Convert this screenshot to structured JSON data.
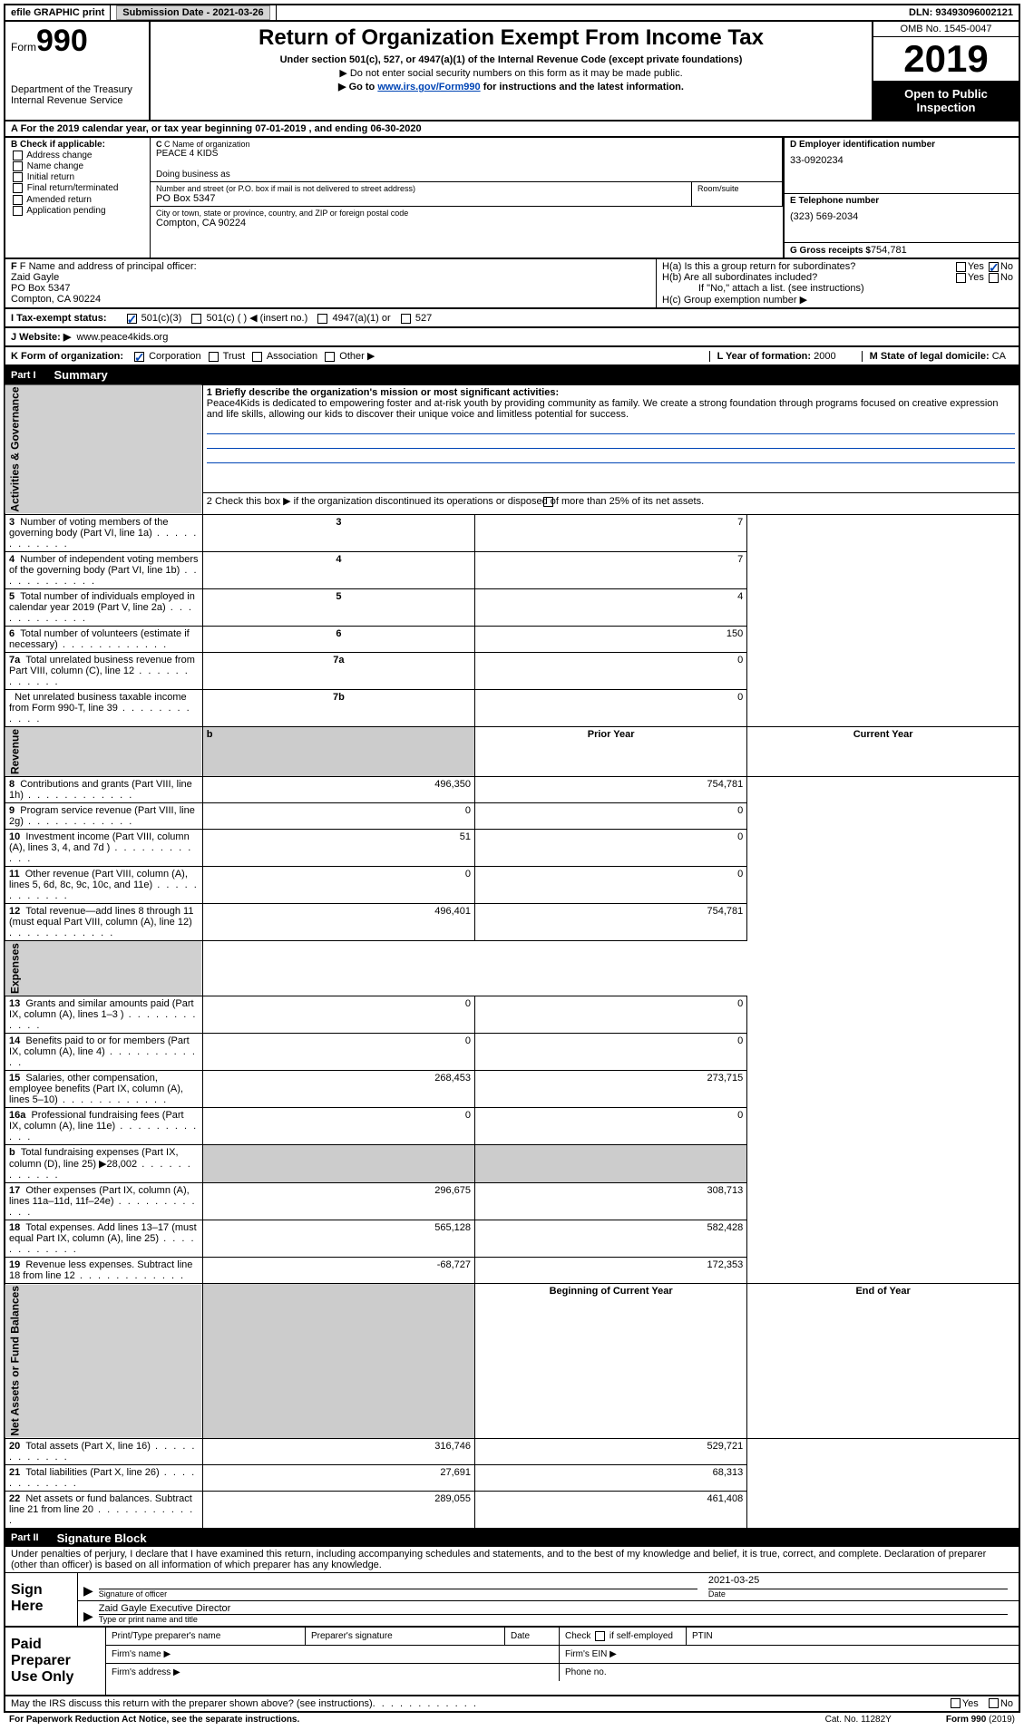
{
  "top": {
    "efile": "efile GRAPHIC print",
    "sub_label": "Submission Date - ",
    "sub_date": "2021-03-26",
    "dln_label": "DLN:",
    "dln": "93493096002121"
  },
  "header": {
    "form_prefix": "Form",
    "form_num": "990",
    "dept": "Department of the Treasury\nInternal Revenue Service",
    "title": "Return of Organization Exempt From Income Tax",
    "sub1": "Under section 501(c), 527, or 4947(a)(1) of the Internal Revenue Code (except private foundations)",
    "sub2": "▶ Do not enter social security numbers on this form as it may be made public.",
    "sub3_pre": "▶ Go to ",
    "sub3_link": "www.irs.gov/Form990",
    "sub3_post": " for instructions and the latest information.",
    "omb": "OMB No. 1545-0047",
    "year": "2019",
    "inspection": "Open to Public Inspection"
  },
  "rowA": "A For the 2019 calendar year, or tax year beginning 07-01-2019    , and ending 06-30-2020",
  "colB": {
    "label": "B Check if applicable:",
    "items": [
      "Address change",
      "Name change",
      "Initial return",
      "Final return/terminated",
      "Amended return",
      "Application pending"
    ]
  },
  "colC": {
    "name_label": "C Name of organization",
    "name": "PEACE 4 KIDS",
    "dba_label": "Doing business as",
    "addr_label": "Number and street (or P.O. box if mail is not delivered to street address)",
    "room_label": "Room/suite",
    "addr": "PO Box 5347",
    "city_label": "City or town, state or province, country, and ZIP or foreign postal code",
    "city": "Compton, CA  90224"
  },
  "colD": {
    "ein_label": "D Employer identification number",
    "ein": "33-0920234",
    "phone_label": "E Telephone number",
    "phone": "(323) 569-2034",
    "gross_label": "G Gross receipts $",
    "gross": "754,781"
  },
  "rowF": {
    "label": "F  Name and address of principal officer:",
    "name": "Zaid Gayle",
    "addr1": "PO Box 5347",
    "addr2": "Compton, CA  90224"
  },
  "rowH": {
    "ha": "H(a)  Is this a group return for subordinates?",
    "hb": "H(b)  Are all subordinates included?",
    "hb_note": "If \"No,\" attach a list. (see instructions)",
    "hc": "H(c)  Group exemption number ▶"
  },
  "taxRow": {
    "label": "I   Tax-exempt status:",
    "opts": [
      "501(c)(3)",
      "501(c) (  ) ◀ (insert no.)",
      "4947(a)(1) or",
      "527"
    ]
  },
  "webRow": {
    "label": "J   Website: ▶",
    "url": "www.peace4kids.org"
  },
  "kRow": {
    "label": "K Form of organization:",
    "opts": [
      "Corporation",
      "Trust",
      "Association",
      "Other ▶"
    ],
    "l_label": "L Year of formation:",
    "l_val": "2000",
    "m_label": "M State of legal domicile:",
    "m_val": "CA"
  },
  "part1": {
    "num": "Part I",
    "title": "Summary",
    "q1_label": "1   Briefly describe the organization's mission or most significant activities:",
    "q1_text": "Peace4Kids is dedicated to empowering foster and at-risk youth by providing community as family. We create a strong foundation through programs focused on creative expression and life skills, allowing our kids to discover their unique voice and limitless potential for success.",
    "q2": "2    Check this box ▶       if the organization discontinued its operations or disposed of more than 25% of its net assets.",
    "sections": [
      {
        "side": "Activities & Governance",
        "rows": [
          {
            "n": "3",
            "label": "Number of voting members of the governing body (Part VI, line 1a)",
            "box": "3",
            "val": "7"
          },
          {
            "n": "4",
            "label": "Number of independent voting members of the governing body (Part VI, line 1b)",
            "box": "4",
            "val": "7"
          },
          {
            "n": "5",
            "label": "Total number of individuals employed in calendar year 2019 (Part V, line 2a)",
            "box": "5",
            "val": "4"
          },
          {
            "n": "6",
            "label": "Total number of volunteers (estimate if necessary)",
            "box": "6",
            "val": "150"
          },
          {
            "n": "7a",
            "label": "Total unrelated business revenue from Part VIII, column (C), line 12",
            "box": "7a",
            "val": "0"
          },
          {
            "n": "",
            "label": "Net unrelated business taxable income from Form 990-T, line 39",
            "box": "7b",
            "val": "0"
          }
        ]
      },
      {
        "side": "Revenue",
        "header": [
          "Prior Year",
          "Current Year"
        ],
        "rows": [
          {
            "n": "8",
            "label": "Contributions and grants (Part VIII, line 1h)",
            "prior": "496,350",
            "cur": "754,781"
          },
          {
            "n": "9",
            "label": "Program service revenue (Part VIII, line 2g)",
            "prior": "0",
            "cur": "0"
          },
          {
            "n": "10",
            "label": "Investment income (Part VIII, column (A), lines 3, 4, and 7d )",
            "prior": "51",
            "cur": "0"
          },
          {
            "n": "11",
            "label": "Other revenue (Part VIII, column (A), lines 5, 6d, 8c, 9c, 10c, and 11e)",
            "prior": "0",
            "cur": "0"
          },
          {
            "n": "12",
            "label": "Total revenue—add lines 8 through 11 (must equal Part VIII, column (A), line 12)",
            "prior": "496,401",
            "cur": "754,781"
          }
        ]
      },
      {
        "side": "Expenses",
        "rows": [
          {
            "n": "13",
            "label": "Grants and similar amounts paid (Part IX, column (A), lines 1–3 )",
            "prior": "0",
            "cur": "0"
          },
          {
            "n": "14",
            "label": "Benefits paid to or for members (Part IX, column (A), line 4)",
            "prior": "0",
            "cur": "0"
          },
          {
            "n": "15",
            "label": "Salaries, other compensation, employee benefits (Part IX, column (A), lines 5–10)",
            "prior": "268,453",
            "cur": "273,715"
          },
          {
            "n": "16a",
            "label": "Professional fundraising fees (Part IX, column (A), line 11e)",
            "prior": "0",
            "cur": "0"
          },
          {
            "n": "b",
            "label": "Total fundraising expenses (Part IX, column (D), line 25) ▶28,002",
            "prior": "shaded",
            "cur": "shaded"
          },
          {
            "n": "17",
            "label": "Other expenses (Part IX, column (A), lines 11a–11d, 11f–24e)",
            "prior": "296,675",
            "cur": "308,713"
          },
          {
            "n": "18",
            "label": "Total expenses. Add lines 13–17 (must equal Part IX, column (A), line 25)",
            "prior": "565,128",
            "cur": "582,428"
          },
          {
            "n": "19",
            "label": "Revenue less expenses. Subtract line 18 from line 12",
            "prior": "-68,727",
            "cur": "172,353"
          }
        ]
      },
      {
        "side": "Net Assets or Fund Balances",
        "header": [
          "Beginning of Current Year",
          "End of Year"
        ],
        "rows": [
          {
            "n": "20",
            "label": "Total assets (Part X, line 16)",
            "prior": "316,746",
            "cur": "529,721"
          },
          {
            "n": "21",
            "label": "Total liabilities (Part X, line 26)",
            "prior": "27,691",
            "cur": "68,313"
          },
          {
            "n": "22",
            "label": "Net assets or fund balances. Subtract line 21 from line 20",
            "prior": "289,055",
            "cur": "461,408"
          }
        ]
      }
    ]
  },
  "part2": {
    "num": "Part II",
    "title": "Signature Block",
    "dec": "Under penalties of perjury, I declare that I have examined this return, including accompanying schedules and statements, and to the best of my knowledge and belief, it is true, correct, and complete. Declaration of preparer (other than officer) is based on all information of which preparer has any knowledge."
  },
  "sign": {
    "label": "Sign Here",
    "sig_label": "Signature of officer",
    "date_label": "Date",
    "date": "2021-03-25",
    "name": "Zaid Gayle  Executive Director",
    "name_label": "Type or print name and title"
  },
  "paid": {
    "label": "Paid Preparer Use Only",
    "h1": "Print/Type preparer's name",
    "h2": "Preparer's signature",
    "h3": "Date",
    "h4_pre": "Check",
    "h4_post": "if self-employed",
    "h5": "PTIN",
    "firm_name": "Firm's name   ▶",
    "firm_ein": "Firm's EIN ▶",
    "firm_addr": "Firm's address ▶",
    "phone": "Phone no."
  },
  "footer": {
    "discuss": "May the IRS discuss this return with the preparer shown above? (see instructions)",
    "paperwork": "For Paperwork Reduction Act Notice, see the separate instructions.",
    "cat": "Cat. No. 11282Y",
    "form": "Form 990 (2019)"
  }
}
